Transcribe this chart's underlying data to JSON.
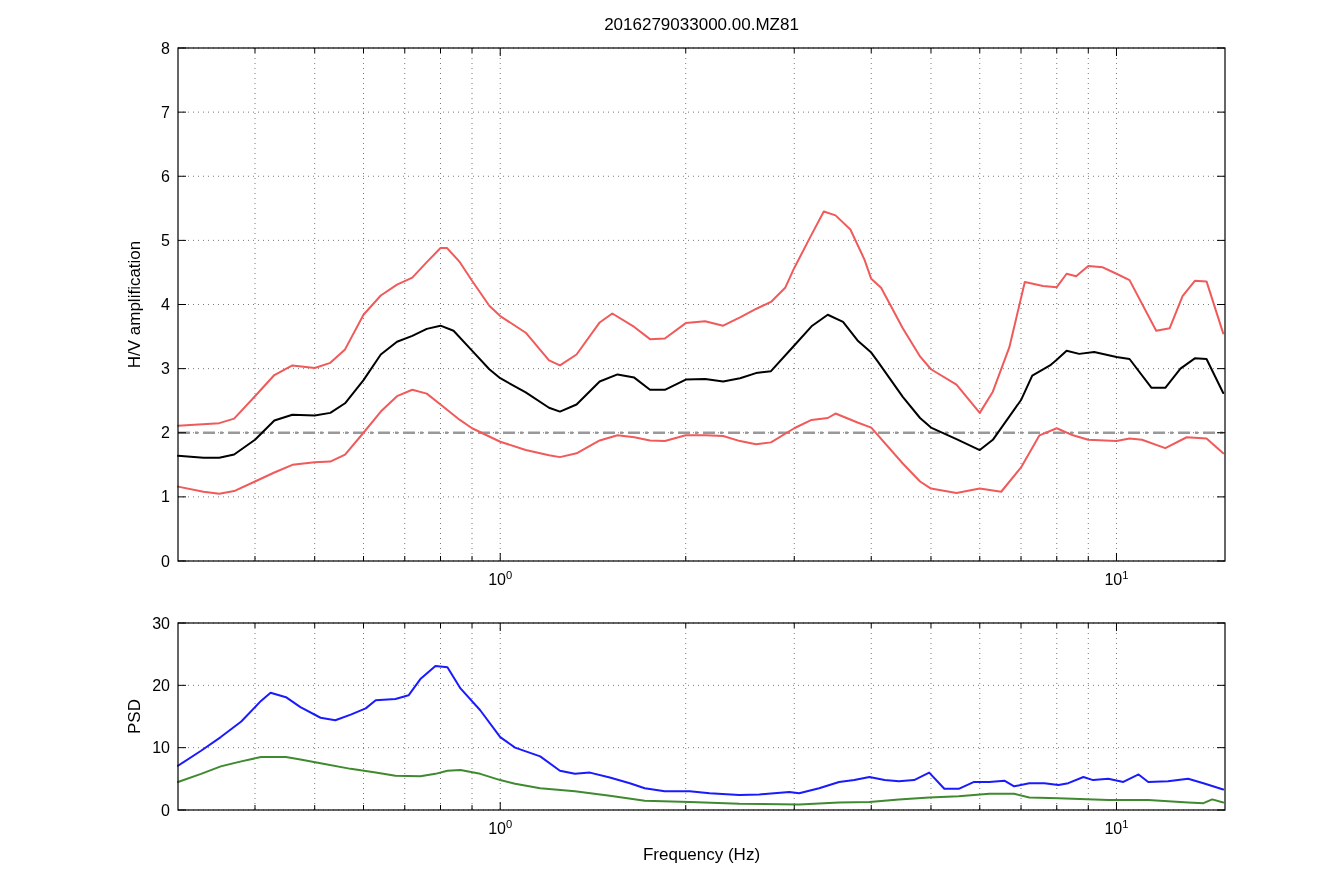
{
  "chart_data": [
    {
      "type": "line",
      "title": "2016279033000.00.MZ81",
      "ylabel": "H/V amplification",
      "log": "x",
      "grid": true,
      "xlim": [
        0.3,
        15
      ],
      "ylim": [
        0,
        8
      ],
      "yticks": [
        0,
        1,
        2,
        3,
        4,
        5,
        6,
        7,
        8
      ],
      "xticks": [
        {
          "value": 0.4,
          "label": null
        },
        {
          "value": 0.5,
          "label": null
        },
        {
          "value": 0.6,
          "label": null
        },
        {
          "value": 0.7,
          "label": null
        },
        {
          "value": 0.8,
          "label": null
        },
        {
          "value": 0.9,
          "label": null
        },
        {
          "value": 1,
          "label": "10$^{0}$"
        },
        {
          "value": 2,
          "label": null
        },
        {
          "value": 3,
          "label": null
        },
        {
          "value": 4,
          "label": null
        },
        {
          "value": 5,
          "label": null
        },
        {
          "value": 6,
          "label": null
        },
        {
          "value": 7,
          "label": null
        },
        {
          "value": 8,
          "label": null
        },
        {
          "value": 9,
          "label": null
        },
        {
          "value": 10,
          "label": "10$^{1}$"
        }
      ],
      "ref_lines": [
        {
          "axis": "y",
          "value": 2,
          "color": "#999999",
          "line_style": "dashed"
        }
      ],
      "series": [
        {
          "color": "#f05a5a",
          "x": [
            0.3,
            0.35,
            0.37,
            0.4,
            0.43,
            0.46,
            0.5,
            0.53,
            0.56,
            0.6,
            0.64,
            0.68,
            0.72,
            0.76,
            0.8,
            0.82,
            0.86,
            0.9,
            0.96,
            1.0,
            1.1,
            1.2,
            1.25,
            1.33,
            1.45,
            1.52,
            1.65,
            1.75,
            1.85,
            2.0,
            2.15,
            2.3,
            2.45,
            2.6,
            2.75,
            2.9,
            3.0,
            3.2,
            3.35,
            3.5,
            3.7,
            3.9,
            4.0,
            4.15,
            4.5,
            4.8,
            5.0,
            5.5,
            6.0,
            6.3,
            6.7,
            7.1,
            7.6,
            8.0,
            8.3,
            8.6,
            9.0,
            9.5,
            10,
            10.5,
            11.6,
            12.2,
            12.8,
            13.4,
            14.0,
            14.9
          ],
          "values": [
            2.11,
            2.15,
            2.22,
            2.57,
            2.9,
            3.05,
            3.01,
            3.09,
            3.3,
            3.84,
            4.14,
            4.31,
            4.42,
            4.66,
            4.88,
            4.88,
            4.66,
            4.37,
            3.98,
            3.82,
            3.56,
            3.13,
            3.05,
            3.22,
            3.72,
            3.86,
            3.65,
            3.46,
            3.47,
            3.71,
            3.74,
            3.67,
            3.8,
            3.93,
            4.04,
            4.26,
            4.57,
            5.09,
            5.45,
            5.39,
            5.17,
            4.7,
            4.4,
            4.26,
            3.63,
            3.19,
            2.99,
            2.75,
            2.31,
            2.64,
            3.33,
            4.35,
            4.29,
            4.27,
            4.48,
            4.44,
            4.6,
            4.58,
            4.48,
            4.38,
            3.59,
            3.63,
            4.13,
            4.37,
            4.36,
            3.55
          ]
        },
        {
          "color": "#f05a5a",
          "x": [
            0.3,
            0.33,
            0.35,
            0.37,
            0.4,
            0.43,
            0.46,
            0.5,
            0.53,
            0.56,
            0.6,
            0.64,
            0.68,
            0.72,
            0.76,
            0.8,
            0.86,
            0.9,
            1.0,
            1.1,
            1.2,
            1.25,
            1.33,
            1.45,
            1.55,
            1.65,
            1.75,
            1.85,
            2.0,
            2.15,
            2.3,
            2.45,
            2.6,
            2.75,
            3.0,
            3.2,
            3.4,
            3.5,
            3.8,
            4.0,
            4.5,
            4.8,
            5.0,
            5.5,
            6.0,
            6.5,
            7.0,
            7.5,
            8.0,
            8.5,
            9.0,
            10,
            10.5,
            11.0,
            12.0,
            13.0,
            14.0,
            14.9
          ],
          "values": [
            1.16,
            1.08,
            1.05,
            1.09,
            1.24,
            1.38,
            1.5,
            1.54,
            1.55,
            1.66,
            2.0,
            2.33,
            2.57,
            2.67,
            2.61,
            2.44,
            2.2,
            2.07,
            1.86,
            1.73,
            1.65,
            1.62,
            1.68,
            1.88,
            1.96,
            1.93,
            1.88,
            1.87,
            1.96,
            1.96,
            1.95,
            1.87,
            1.82,
            1.85,
            2.07,
            2.2,
            2.23,
            2.3,
            2.16,
            2.08,
            1.52,
            1.24,
            1.13,
            1.06,
            1.13,
            1.08,
            1.46,
            1.96,
            2.07,
            1.96,
            1.89,
            1.87,
            1.91,
            1.89,
            1.76,
            1.93,
            1.91,
            1.68
          ]
        },
        {
          "color": "#000000",
          "x": [
            0.3,
            0.33,
            0.35,
            0.37,
            0.4,
            0.43,
            0.46,
            0.5,
            0.53,
            0.56,
            0.6,
            0.64,
            0.68,
            0.72,
            0.76,
            0.8,
            0.84,
            0.9,
            0.96,
            1.0,
            1.1,
            1.2,
            1.25,
            1.33,
            1.45,
            1.55,
            1.65,
            1.75,
            1.85,
            2.0,
            2.15,
            2.3,
            2.45,
            2.6,
            2.75,
            3.0,
            3.2,
            3.4,
            3.6,
            3.8,
            4.0,
            4.1,
            4.5,
            4.8,
            5.0,
            5.5,
            6.0,
            6.3,
            7.0,
            7.3,
            7.8,
            8.0,
            8.3,
            8.7,
            9.2,
            10,
            10.5,
            11.4,
            12.0,
            12.7,
            13.4,
            14.0,
            14.9
          ],
          "values": [
            1.64,
            1.61,
            1.61,
            1.66,
            1.89,
            2.19,
            2.28,
            2.27,
            2.31,
            2.46,
            2.82,
            3.22,
            3.42,
            3.51,
            3.62,
            3.67,
            3.59,
            3.28,
            2.99,
            2.85,
            2.63,
            2.39,
            2.33,
            2.44,
            2.8,
            2.91,
            2.86,
            2.67,
            2.67,
            2.83,
            2.84,
            2.8,
            2.85,
            2.93,
            2.96,
            3.36,
            3.66,
            3.84,
            3.73,
            3.44,
            3.25,
            3.11,
            2.56,
            2.23,
            2.08,
            1.9,
            1.73,
            1.89,
            2.51,
            2.89,
            3.05,
            3.14,
            3.28,
            3.23,
            3.26,
            3.18,
            3.15,
            2.7,
            2.7,
            3.0,
            3.16,
            3.15,
            2.62
          ]
        }
      ]
    },
    {
      "type": "line",
      "xlabel": "Frequency (Hz)",
      "ylabel": "PSD",
      "log": "x",
      "grid": true,
      "xlim": [
        0.3,
        15
      ],
      "ylim": [
        0,
        30
      ],
      "yticks": [
        0,
        10,
        20,
        30
      ],
      "xticks": [
        {
          "value": 0.4,
          "label": null
        },
        {
          "value": 0.5,
          "label": null
        },
        {
          "value": 0.6,
          "label": null
        },
        {
          "value": 0.7,
          "label": null
        },
        {
          "value": 0.8,
          "label": null
        },
        {
          "value": 0.9,
          "label": null
        },
        {
          "value": 1,
          "label": "10$^{0}$"
        },
        {
          "value": 2,
          "label": null
        },
        {
          "value": 3,
          "label": null
        },
        {
          "value": 4,
          "label": null
        },
        {
          "value": 5,
          "label": null
        },
        {
          "value": 6,
          "label": null
        },
        {
          "value": 7,
          "label": null
        },
        {
          "value": 8,
          "label": null
        },
        {
          "value": 9,
          "label": null
        },
        {
          "value": 10,
          "label": "10$^{1}$"
        }
      ],
      "series": [
        {
          "color": "#1a1aff",
          "x": [
            0.3,
            0.327,
            0.352,
            0.38,
            0.409,
            0.424,
            0.449,
            0.474,
            0.511,
            0.54,
            0.572,
            0.605,
            0.628,
            0.676,
            0.71,
            0.742,
            0.785,
            0.821,
            0.862,
            0.928,
            1.0,
            1.057,
            1.161,
            1.25,
            1.322,
            1.398,
            1.506,
            1.623,
            1.716,
            1.849,
            2.03,
            2.187,
            2.444,
            2.633,
            2.945,
            3.056,
            3.292,
            3.547,
            3.754,
            3.973,
            4.205,
            4.435,
            4.694,
            4.967,
            5.256,
            5.546,
            5.874,
            6.216,
            6.578,
            6.822,
            7.219,
            7.639,
            8.048,
            8.352,
            8.838,
            9.165,
            9.698,
            10.26,
            10.86,
            11.26,
            12.12,
            13.07,
            13.84,
            14.9
          ],
          "values": [
            7.1,
            9.5,
            11.7,
            14.2,
            17.5,
            18.8,
            18.1,
            16.5,
            14.8,
            14.4,
            15.3,
            16.3,
            17.6,
            17.8,
            18.4,
            21,
            23.1,
            22.9,
            19.5,
            16,
            11.7,
            10,
            8.6,
            6.3,
            5.8,
            6.0,
            5.2,
            4.3,
            3.5,
            3.0,
            3.0,
            2.7,
            2.4,
            2.5,
            2.9,
            2.7,
            3.5,
            4.5,
            4.8,
            5.3,
            4.8,
            4.6,
            4.8,
            6.0,
            3.4,
            3.4,
            4.5,
            4.5,
            4.7,
            3.8,
            4.3,
            4.3,
            4.0,
            4.3,
            5.3,
            4.8,
            5.0,
            4.5,
            5.7,
            4.5,
            4.6,
            5.0,
            4.3,
            3.3
          ]
        },
        {
          "color": "#3f8a2e",
          "x": [
            0.3,
            0.327,
            0.352,
            0.38,
            0.409,
            0.449,
            0.474,
            0.511,
            0.572,
            0.628,
            0.676,
            0.742,
            0.785,
            0.821,
            0.862,
            0.928,
            1.0,
            1.057,
            1.161,
            1.322,
            1.506,
            1.716,
            2.03,
            2.444,
            3.056,
            3.547,
            3.973,
            4.435,
            4.967,
            5.546,
            6.216,
            6.822,
            7.219,
            8.048,
            9.698,
            11.26,
            13.07,
            13.84,
            14.3,
            14.9
          ],
          "values": [
            4.5,
            5.8,
            7.0,
            7.8,
            8.5,
            8.5,
            8.1,
            7.5,
            6.6,
            6.0,
            5.5,
            5.4,
            5.8,
            6.3,
            6.4,
            5.8,
            4.8,
            4.2,
            3.5,
            3.0,
            2.3,
            1.5,
            1.3,
            1.0,
            0.9,
            1.2,
            1.3,
            1.7,
            2.0,
            2.2,
            2.6,
            2.6,
            2.0,
            1.9,
            1.6,
            1.6,
            1.2,
            1.1,
            1.7,
            1.2
          ]
        }
      ]
    }
  ]
}
